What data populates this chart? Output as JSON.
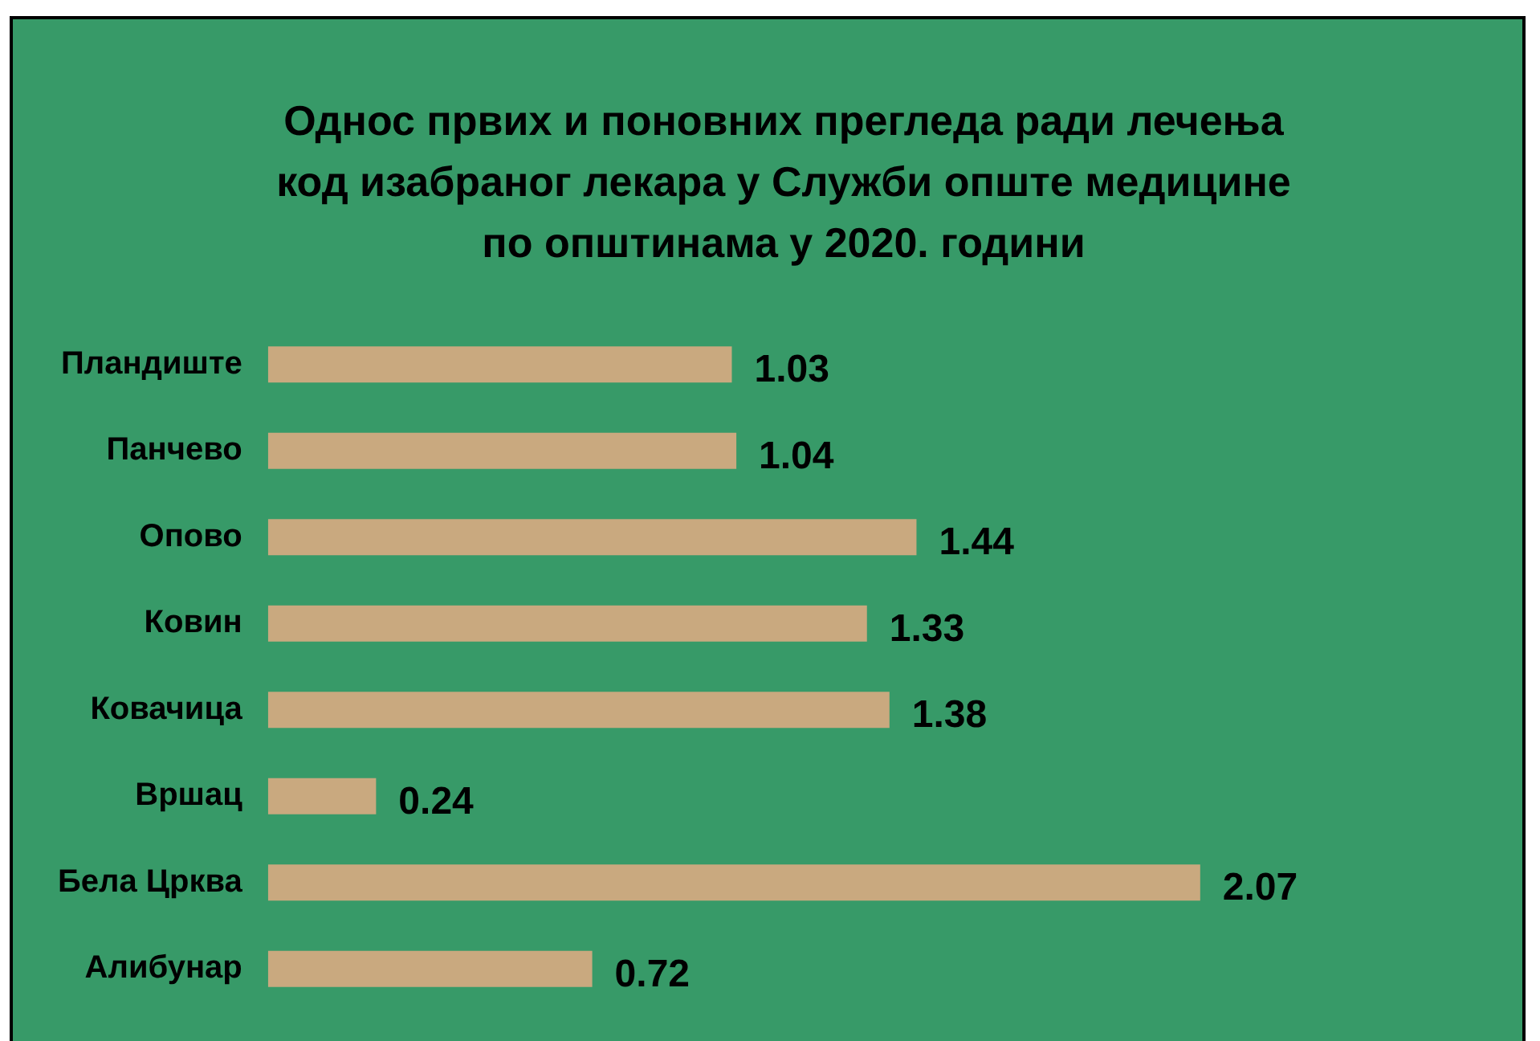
{
  "chart_data": {
    "type": "bar",
    "orientation": "horizontal",
    "title": "Однос првих и поновних прегледа ради лечења код изабраног лекара у Служби опште медицине по општинама у 2020. години",
    "categories": [
      "Пландиште",
      "Панчево",
      "Опово",
      "Ковин",
      "Ковачица",
      "Вршац",
      "Бела Црква",
      "Алибунар"
    ],
    "values": [
      1.03,
      1.04,
      1.44,
      1.33,
      1.38,
      0.24,
      2.07,
      0.72
    ],
    "color": "#c9a97f",
    "data_labels": true,
    "grid": false,
    "legend": false,
    "tick_labels": "y"
  }
}
